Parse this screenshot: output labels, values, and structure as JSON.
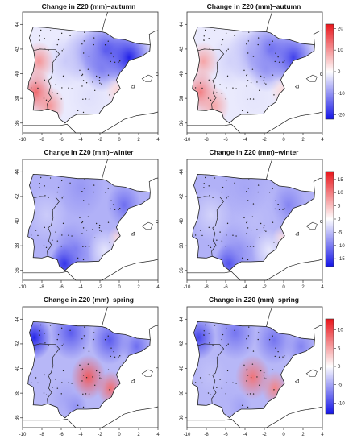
{
  "colors": {
    "positive": "#e8151b",
    "neutral": "#ffffff",
    "negative": "#1414e6",
    "land_outline": "#222222",
    "sea": "#ffffff"
  },
  "axes": {
    "x_ticks": [
      "-10",
      "-8",
      "-6",
      "-4",
      "-2",
      "0",
      "2",
      "4"
    ],
    "y_ticks": [
      "36",
      "38",
      "40",
      "42",
      "44"
    ]
  },
  "rows": [
    {
      "season": "autumn",
      "panels": [
        {
          "title": "Change in Z20 (mm)–autumn"
        },
        {
          "title": "Change in Z20 (mm)–autumn"
        }
      ],
      "colorbar": {
        "ticks": [
          "20",
          "10",
          "0",
          "-10",
          "-20"
        ],
        "range": [
          -22,
          22
        ]
      }
    },
    {
      "season": "winter",
      "panels": [
        {
          "title": "Change in Z20 (mm)–winter"
        },
        {
          "title": "Change in Z20 (mm)–winter"
        }
      ],
      "colorbar": {
        "ticks": [
          "15",
          "10",
          "5",
          "0",
          "-5",
          "-10",
          "-15"
        ],
        "range": [
          -18,
          18
        ]
      }
    },
    {
      "season": "spring",
      "panels": [
        {
          "title": "Change in Z20 (mm)–spring"
        },
        {
          "title": "Change in Z20 (mm)–spring"
        }
      ],
      "colorbar": {
        "ticks": [
          "10",
          "5",
          "0",
          "-5",
          "-10"
        ],
        "range": [
          -13,
          13
        ]
      }
    }
  ]
}
